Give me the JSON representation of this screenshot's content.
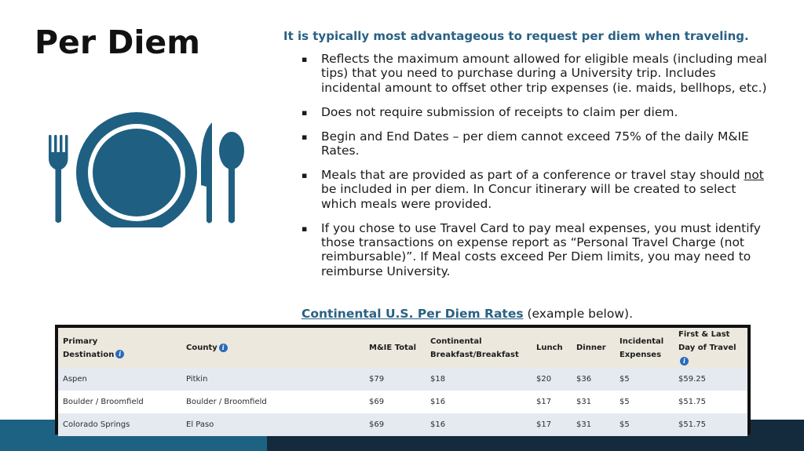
{
  "slide": {
    "title": "Per Diem",
    "lead": "It is typically most advantageous to request per diem when traveling.",
    "bullet_glyph": "▪",
    "bullets": [
      {
        "text": "Reflects the maximum amount allowed for eligible meals (including meal tips) that you need to purchase during a University trip. Includes incidental amount to offset other trip expenses (ie. maids, bellhops, etc.)"
      },
      {
        "text": "Does not require submission of receipts to claim per diem."
      },
      {
        "text": "Begin and End Dates – per diem cannot exceed 75% of the daily M&IE Rates."
      },
      {
        "before": "Meals that are provided as part of a conference or travel stay should ",
        "underlined": "not",
        "after": " be included in per diem. In Concur itinerary will be created to select which meals were provided."
      },
      {
        "text": "If you chose to use Travel Card to pay meal expenses, you must identify those transactions on expense report as “Personal Travel Charge (not reimbursable)”. If Meal costs exceed Per Diem limits, you may need to reimburse University."
      }
    ],
    "rates_link": "Continental U.S. Per Diem Rates",
    "rates_suffix": " (example below).",
    "icon": "plate-fork-knife-spoon-icon",
    "icon_color": "#1f5f82"
  },
  "table": {
    "info_glyph": "i",
    "headers": {
      "primary_1": "Primary",
      "primary_2": "Destination",
      "county": "County",
      "mie": "M&IE Total",
      "cont_1": "Continental",
      "cont_2": "Breakfast/Breakfast",
      "lunch": "Lunch",
      "dinner": "Dinner",
      "inc_1": "Incidental",
      "inc_2": "Expenses",
      "fl_1": "First & Last",
      "fl_2": "Day of Travel"
    },
    "rows": [
      [
        "Aspen",
        "Pitkin",
        "$79",
        "$18",
        "$20",
        "$36",
        "$5",
        "$59.25"
      ],
      [
        "Boulder / Broomfield",
        "Boulder / Broomfield",
        "$69",
        "$16",
        "$17",
        "$31",
        "$5",
        "$51.75"
      ],
      [
        "Colorado Springs",
        "El Paso",
        "$69",
        "$16",
        "$17",
        "$31",
        "$5",
        "$51.75"
      ]
    ]
  }
}
